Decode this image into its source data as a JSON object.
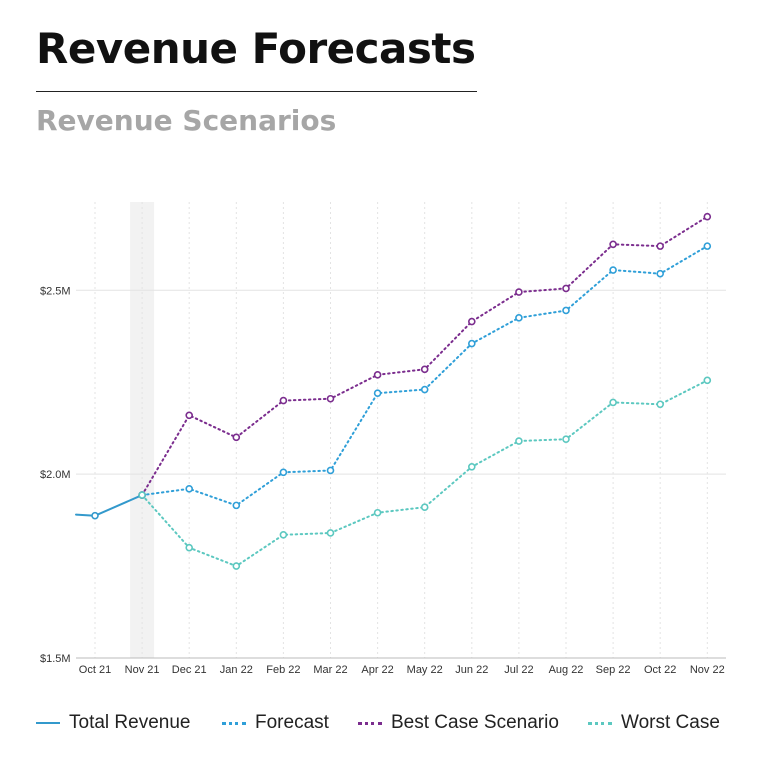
{
  "header": {
    "title": "Revenue Forecasts",
    "subtitle": "Revenue Scenarios"
  },
  "colors": {
    "total": "#3399cc",
    "forecast": "#2f9fd8",
    "best": "#7b2d8e",
    "worst": "#5cc8c0",
    "highlight_band": "#f2f2f2",
    "grid": "#e3e3e3"
  },
  "chart_data": {
    "type": "line",
    "title": "Revenue Scenarios",
    "xlabel": "",
    "ylabel": "",
    "categories": [
      "Oct 21",
      "Nov 21",
      "Dec 21",
      "Jan 22",
      "Feb 22",
      "Mar 22",
      "Apr 22",
      "May 22",
      "Jun 22",
      "Jul 22",
      "Aug 22",
      "Sep 22",
      "Oct 22",
      "Nov 22"
    ],
    "ylim": [
      1.5,
      2.74
    ],
    "yticks": [
      {
        "value": 1.5,
        "label": "$1.5M"
      },
      {
        "value": 2.0,
        "label": "$2.0M"
      },
      {
        "value": 2.5,
        "label": "$2.5M"
      }
    ],
    "grid": true,
    "highlight_category": "Nov 21",
    "legend_position": "bottom",
    "series": [
      {
        "name": "Total Revenue",
        "style": "solid",
        "values": [
          1.887,
          1.943,
          null,
          null,
          null,
          null,
          null,
          null,
          null,
          null,
          null,
          null,
          null,
          null
        ],
        "lead_in": 1.89
      },
      {
        "name": "Forecast",
        "style": "dotted",
        "values": [
          null,
          1.943,
          1.96,
          1.915,
          2.005,
          2.01,
          2.22,
          2.23,
          2.355,
          2.425,
          2.445,
          2.555,
          2.545,
          2.62
        ]
      },
      {
        "name": "Best Case Scenario",
        "style": "dotted",
        "values": [
          null,
          1.943,
          2.16,
          2.1,
          2.2,
          2.205,
          2.27,
          2.285,
          2.415,
          2.495,
          2.505,
          2.625,
          2.62,
          2.7
        ]
      },
      {
        "name": "Worst Case",
        "style": "dotted",
        "values": [
          null,
          1.943,
          1.8,
          1.75,
          1.835,
          1.84,
          1.895,
          1.91,
          2.02,
          2.09,
          2.095,
          2.195,
          2.19,
          2.255
        ]
      }
    ]
  }
}
